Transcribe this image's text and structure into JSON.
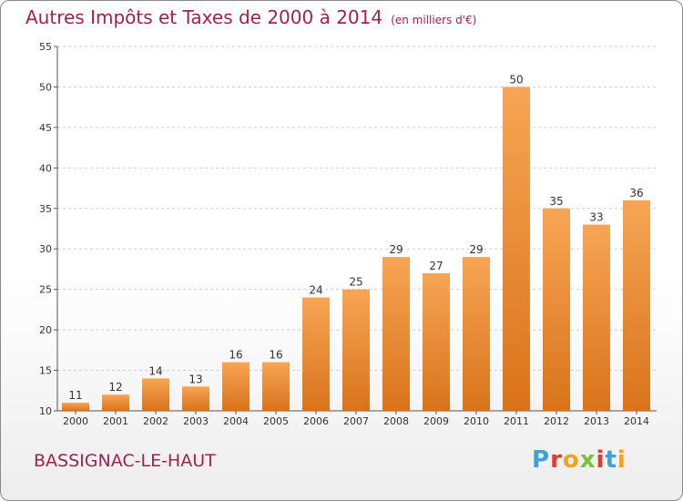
{
  "chart_data": {
    "type": "bar",
    "title": "Autres Impôts et Taxes de 2000 à 2014",
    "subtitle": "(en milliers d'€)",
    "categories": [
      "2000",
      "2001",
      "2002",
      "2003",
      "2004",
      "2005",
      "2006",
      "2007",
      "2008",
      "2009",
      "2010",
      "2011",
      "2012",
      "2013",
      "2014"
    ],
    "values": [
      11,
      12,
      14,
      13,
      16,
      16,
      24,
      25,
      29,
      27,
      29,
      50,
      35,
      33,
      36
    ],
    "ylim": [
      10,
      55
    ],
    "yticks": [
      10,
      15,
      20,
      25,
      30,
      35,
      40,
      45,
      50,
      55
    ],
    "grid": "horizontal dashed",
    "bar_color_top": "#f7a555",
    "bar_color_bottom": "#d9731a"
  },
  "footer": {
    "commune": "BASSIGNAC-LE-HAUT",
    "logo_text": "Proxiti",
    "logo_colors": [
      "#3aa3d8",
      "#e23b2e",
      "#f2a21f",
      "#7fbf3f",
      "#e23b2e",
      "#3aa3d8",
      "#f2a21f"
    ]
  }
}
